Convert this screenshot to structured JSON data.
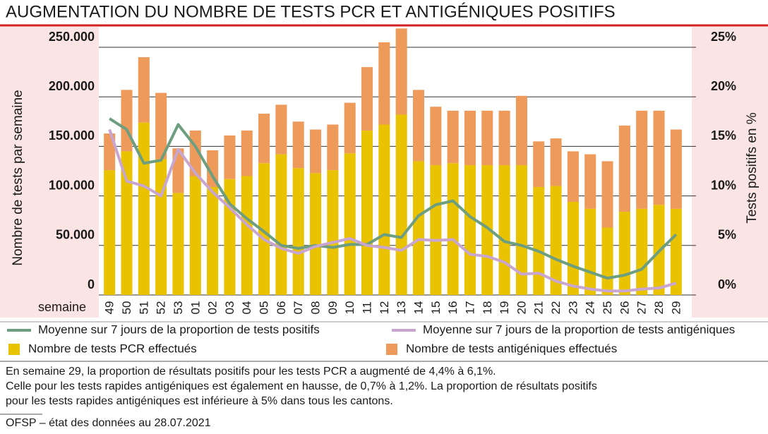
{
  "chart_data": {
    "type": "bar",
    "title": "AUGMENTATION DU NOMBRE DE TESTS PCR ET ANTIGÉNIQUES POSITIFS",
    "ylabel": "Nombre de tests par semaine",
    "y2label": "Tests positifs en %",
    "xlabel": "semaine",
    "stacked": true,
    "grid": true,
    "categories": [
      "49",
      "50",
      "51",
      "52",
      "53",
      "01",
      "02",
      "03",
      "04",
      "05",
      "06",
      "07",
      "08",
      "09",
      "10",
      "11",
      "12",
      "13",
      "14",
      "15",
      "16",
      "17",
      "18",
      "19",
      "20",
      "21",
      "22",
      "23",
      "24",
      "25",
      "26",
      "27",
      "28",
      "29"
    ],
    "series": [
      {
        "name": "Nombre de tests PCR effectués",
        "type": "bar",
        "color": "#e9c200",
        "values": [
          126000,
          145000,
          174000,
          137000,
          103000,
          120000,
          109000,
          117000,
          120000,
          133000,
          142000,
          128000,
          123000,
          126000,
          143000,
          166000,
          172000,
          182000,
          135000,
          131000,
          133000,
          131000,
          131000,
          131000,
          131000,
          109000,
          110000,
          94000,
          87000,
          68000,
          84000,
          87000,
          91000,
          87000
        ]
      },
      {
        "name": "Nombre de tests antigéniques effectués",
        "type": "bar",
        "color": "#ee9a5b",
        "values": [
          37000,
          62000,
          66000,
          67000,
          45000,
          46000,
          37000,
          44000,
          46000,
          50000,
          50000,
          47000,
          44000,
          46000,
          51000,
          64000,
          83000,
          87000,
          72000,
          59000,
          53000,
          55000,
          55000,
          55000,
          70000,
          46000,
          48000,
          51000,
          55000,
          67000,
          87000,
          99000,
          95000,
          80000
        ]
      },
      {
        "name": "Moyenne sur 7 jours de la proportion de tests positifs",
        "type": "line",
        "axis": "y2",
        "color": "#6e9e80",
        "values": [
          17.8,
          16.7,
          13.3,
          13.6,
          17.2,
          15.0,
          12.0,
          9.2,
          7.7,
          6.4,
          5.0,
          4.7,
          5.0,
          4.8,
          5.1,
          5.1,
          6.1,
          5.8,
          8.0,
          9.1,
          9.5,
          7.9,
          6.8,
          5.4,
          5.0,
          4.4,
          3.6,
          2.9,
          2.3,
          1.7,
          2.0,
          2.6,
          4.4,
          6.1
        ]
      },
      {
        "name": "Moyenne sur 7 jours de la proportion de tests antigéniques",
        "type": "line",
        "axis": "y2",
        "color": "#c9a6cf",
        "values": [
          16.7,
          11.5,
          11.0,
          10.0,
          14.7,
          12.3,
          10.4,
          8.8,
          7.1,
          5.6,
          4.7,
          4.2,
          4.9,
          5.3,
          5.7,
          5.0,
          4.8,
          4.5,
          5.6,
          5.5,
          5.6,
          4.1,
          3.9,
          3.3,
          2.1,
          2.2,
          1.4,
          0.9,
          0.6,
          0.4,
          0.4,
          0.6,
          0.7,
          1.2
        ]
      }
    ],
    "ylim": [
      0,
      250000
    ],
    "yticks": [
      0,
      {
        "value": 50000,
        "label": "50.000"
      },
      {
        "value": 100000,
        "label": "100.000"
      },
      {
        "value": 150000,
        "label": "150.000"
      },
      {
        "value": 200000,
        "label": "200.000"
      },
      {
        "value": 250000,
        "label": "250.000"
      }
    ],
    "y2lim": [
      0,
      25
    ],
    "y2ticks": [
      {
        "value": 0,
        "label": "0%"
      },
      {
        "value": 5,
        "label": "5%"
      },
      {
        "value": 10,
        "label": "10%"
      },
      {
        "value": 15,
        "label": "15%"
      },
      {
        "value": 20,
        "label": "20%"
      },
      {
        "value": 25,
        "label": "25%"
      }
    ],
    "notes": [
      "En semaine 29, la proportion de résultats positifs pour les tests PCR a augmenté de 4,4% à 6,1%.",
      "Celle pour les tests rapides antigéniques est également en hausse, de 0,7% à 1,2%. La proportion de résultats positifs",
      "pour les tests rapides antigéniques est inférieure à 5% dans tous les cantons."
    ],
    "source": "OFSP – état des données au 28.07.2021"
  }
}
